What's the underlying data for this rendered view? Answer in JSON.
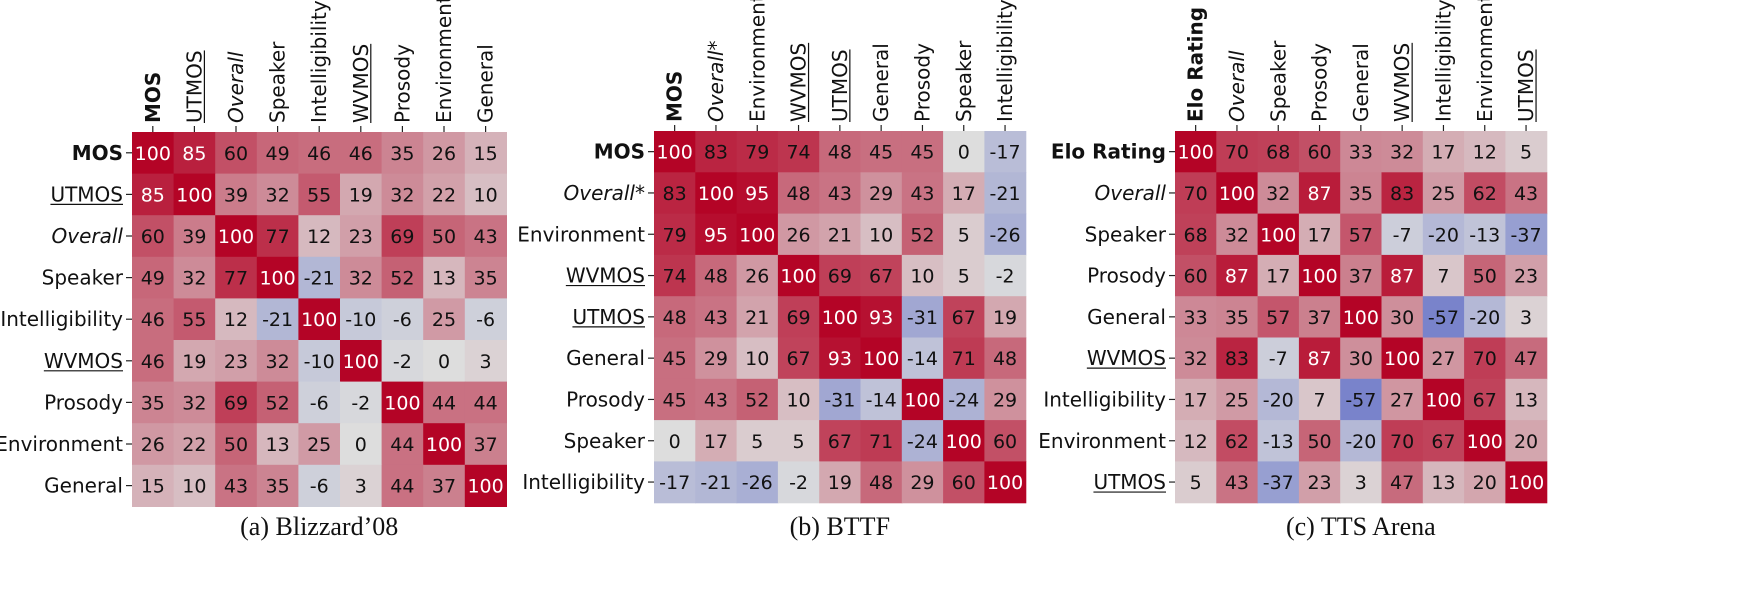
{
  "color_scale": {
    "negative": "#3b4cc0",
    "neutral": "#dddddd",
    "positive": "#b40426",
    "range": [
      -100,
      100
    ]
  },
  "chart_data": [
    {
      "type": "heatmap",
      "caption": "(a) Blizzard’08",
      "labels": [
        "MOS",
        "UTMOS",
        "Overall",
        "Speaker",
        "Intelligibility",
        "WVMOS",
        "Prosody",
        "Environment",
        "General"
      ],
      "label_styles": [
        "bold",
        "underline",
        "italic",
        "normal",
        "normal",
        "underline",
        "normal",
        "normal",
        "normal"
      ],
      "values": [
        [
          100,
          85,
          60,
          49,
          46,
          46,
          35,
          26,
          15
        ],
        [
          85,
          100,
          39,
          32,
          55,
          19,
          32,
          22,
          10
        ],
        [
          60,
          39,
          100,
          77,
          12,
          23,
          69,
          50,
          43
        ],
        [
          49,
          32,
          77,
          100,
          -21,
          32,
          52,
          13,
          35
        ],
        [
          46,
          55,
          12,
          -21,
          100,
          -10,
          -6,
          25,
          -6
        ],
        [
          46,
          19,
          23,
          32,
          -10,
          100,
          -2,
          0,
          3
        ],
        [
          35,
          32,
          69,
          52,
          -6,
          -2,
          100,
          44,
          44
        ],
        [
          26,
          22,
          50,
          13,
          25,
          0,
          44,
          100,
          37
        ],
        [
          15,
          10,
          43,
          35,
          -6,
          3,
          44,
          37,
          100
        ]
      ]
    },
    {
      "type": "heatmap",
      "caption": "(b) BTTF",
      "labels": [
        "MOS",
        "Overall*",
        "Environment",
        "WVMOS",
        "UTMOS",
        "General",
        "Prosody",
        "Speaker",
        "Intelligibility"
      ],
      "label_styles": [
        "bold",
        "italic",
        "normal",
        "underline",
        "underline",
        "normal",
        "normal",
        "normal",
        "normal"
      ],
      "values": [
        [
          100,
          83,
          79,
          74,
          48,
          45,
          45,
          0,
          -17
        ],
        [
          83,
          100,
          95,
          48,
          43,
          29,
          43,
          17,
          -21
        ],
        [
          79,
          95,
          100,
          26,
          21,
          10,
          52,
          5,
          -26
        ],
        [
          74,
          48,
          26,
          100,
          69,
          67,
          10,
          5,
          -2
        ],
        [
          48,
          43,
          21,
          69,
          100,
          93,
          -31,
          67,
          19
        ],
        [
          45,
          29,
          10,
          67,
          93,
          100,
          -14,
          71,
          48
        ],
        [
          45,
          43,
          52,
          10,
          -31,
          -14,
          100,
          -24,
          29
        ],
        [
          0,
          17,
          5,
          5,
          67,
          71,
          -24,
          100,
          60
        ],
        [
          -17,
          -21,
          -26,
          -2,
          19,
          48,
          29,
          60,
          100
        ]
      ]
    },
    {
      "type": "heatmap",
      "caption": "(c) TTS Arena",
      "labels": [
        "Elo Rating",
        "Overall",
        "Speaker",
        "Prosody",
        "General",
        "WVMOS",
        "Intelligibility",
        "Environment",
        "UTMOS"
      ],
      "label_styles": [
        "bold",
        "italic",
        "normal",
        "normal",
        "normal",
        "underline",
        "normal",
        "normal",
        "underline"
      ],
      "values": [
        [
          100,
          70,
          68,
          60,
          33,
          32,
          17,
          12,
          5
        ],
        [
          70,
          100,
          32,
          87,
          35,
          83,
          25,
          62,
          43
        ],
        [
          68,
          32,
          100,
          17,
          57,
          -7,
          -20,
          -13,
          -37
        ],
        [
          60,
          87,
          17,
          100,
          37,
          87,
          7,
          50,
          23
        ],
        [
          33,
          35,
          57,
          37,
          100,
          30,
          -57,
          -20,
          3
        ],
        [
          32,
          83,
          -7,
          87,
          30,
          100,
          27,
          70,
          47
        ],
        [
          17,
          25,
          -20,
          7,
          -57,
          27,
          100,
          67,
          13
        ],
        [
          12,
          62,
          -13,
          50,
          -20,
          70,
          67,
          100,
          20
        ],
        [
          5,
          43,
          -37,
          23,
          3,
          47,
          13,
          20,
          100
        ]
      ]
    }
  ]
}
